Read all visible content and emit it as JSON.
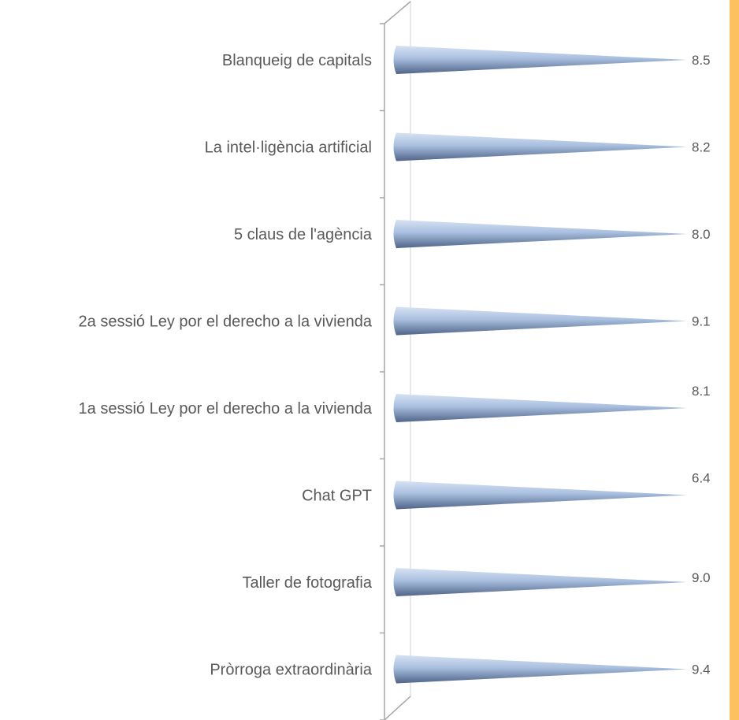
{
  "chart_data": {
    "type": "bar",
    "orientation": "horizontal",
    "bar_shape": "cone-3d",
    "categories": [
      "Blanqueig de capitals",
      "La intel·ligència artificial",
      "5 claus de l'agència",
      "2a sessió Ley por el derecho a la vivienda",
      "1a sessió Ley por el derecho a la vivienda",
      "Chat GPT",
      "Taller de fotografia",
      "Pròrroga extraordinària"
    ],
    "values": [
      8.5,
      8.2,
      8.0,
      9.1,
      8.1,
      6.4,
      9.0,
      9.4
    ],
    "data_labels": [
      "8.5",
      "8.2",
      "8.0",
      "9.1",
      "8.1",
      "6.4",
      "9.0",
      "9.4"
    ],
    "title": "",
    "xlabel": "",
    "ylabel": "",
    "grid": false,
    "legend": "none",
    "colors": {
      "bar_light": "#d6e2f3",
      "bar_mid": "#a9bfdf",
      "bar_dark": "#4f6488",
      "axis": "#a6a6a6",
      "text": "#595959",
      "side_bar": "#fdc25f"
    }
  }
}
